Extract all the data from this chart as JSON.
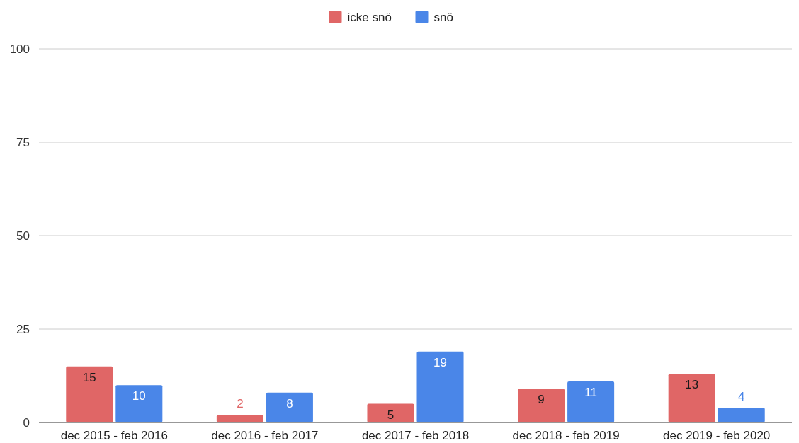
{
  "chart_data": {
    "type": "bar",
    "categories": [
      "dec 2015 - feb 2016",
      "dec 2016 - feb 2017",
      "dec 2017 - feb 2018",
      "dec 2018 - feb 2019",
      "dec 2019 - feb 2020"
    ],
    "series": [
      {
        "name": "icke snö",
        "color": "#e06666",
        "values": [
          15,
          2,
          5,
          9,
          13
        ]
      },
      {
        "name": "snö",
        "color": "#4a86e8",
        "values": [
          10,
          8,
          19,
          11,
          4
        ]
      }
    ],
    "ylim": [
      0,
      100
    ],
    "yticks": [
      0,
      25,
      50,
      75,
      100
    ],
    "grid": "y",
    "legend": "top",
    "data_labels": true
  }
}
